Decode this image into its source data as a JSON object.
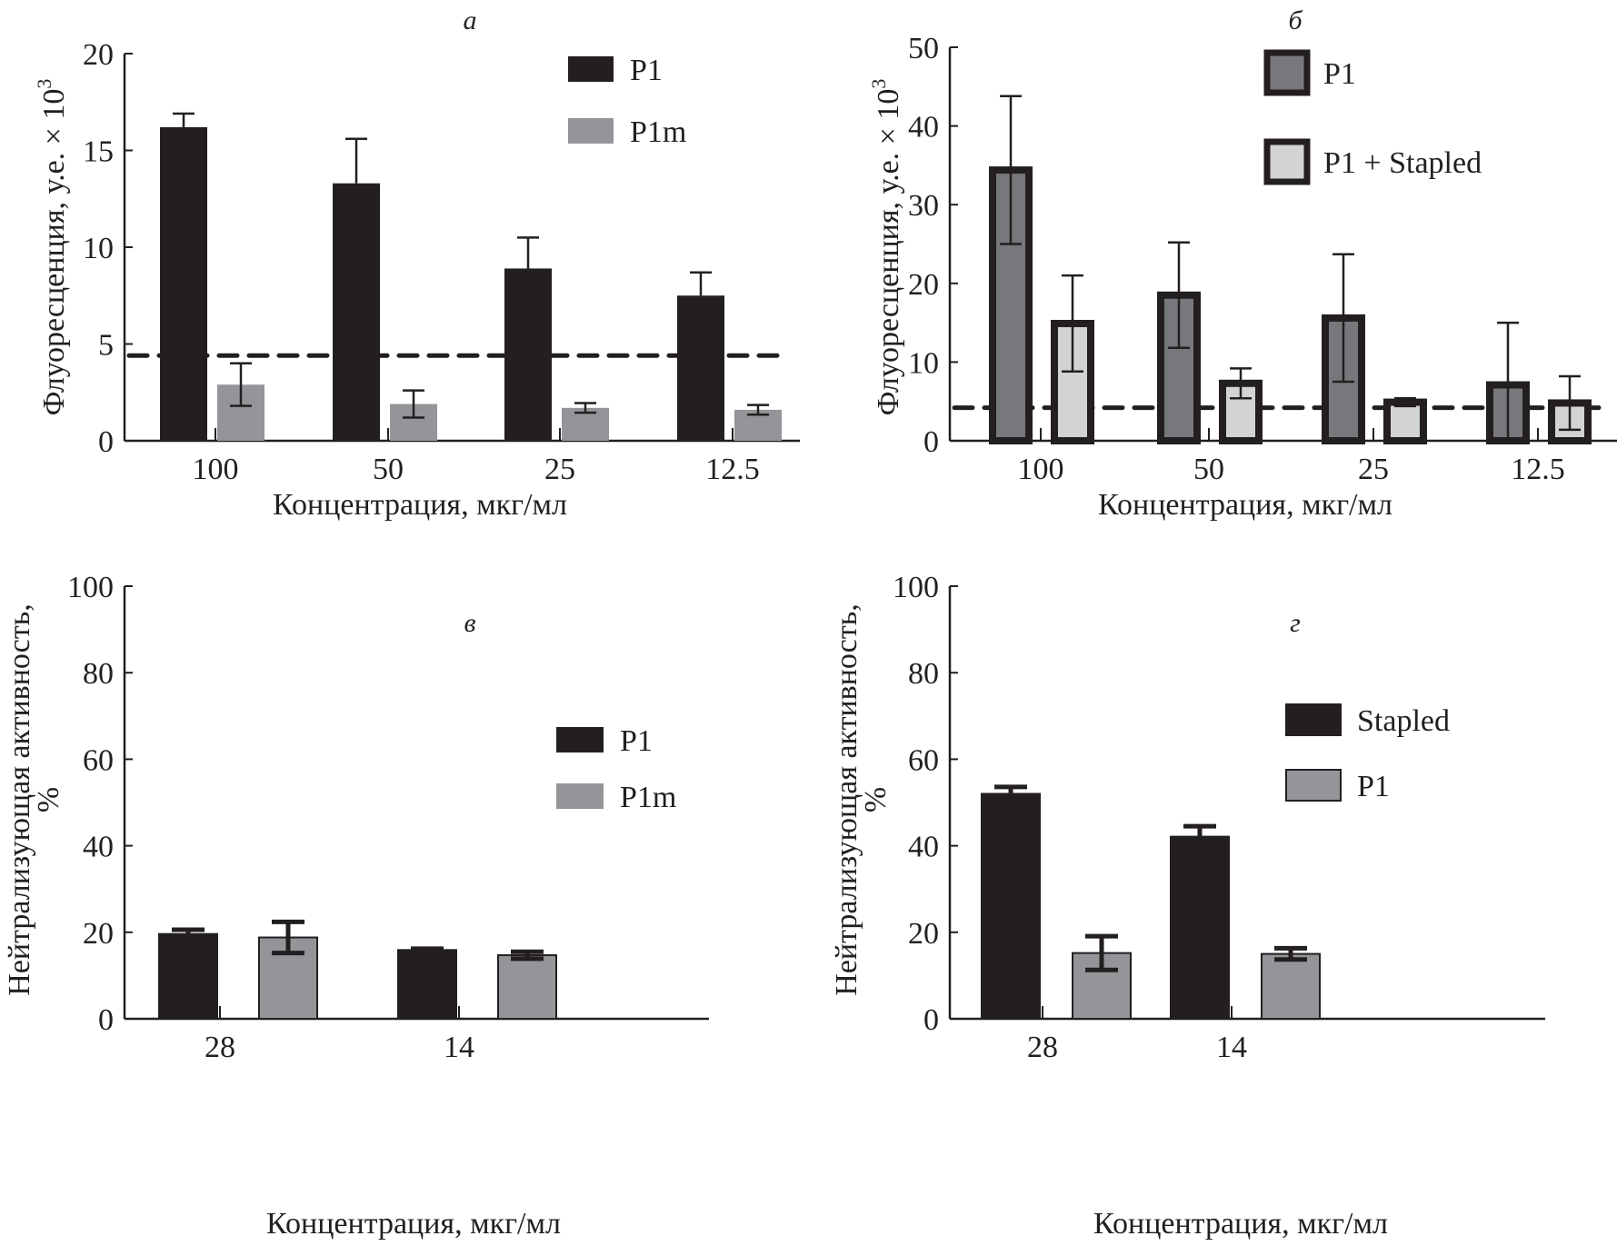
{
  "chart_data": [
    {
      "id": "a",
      "type": "bar",
      "panel_label": "а",
      "title": "",
      "xlabel": "Концентрация, мкг/мл",
      "ylabel": "Флуоресценция, у.е. × 10",
      "ylabel_superscript": "3",
      "ylim": [
        0,
        20
      ],
      "yticks": [
        0,
        5,
        10,
        15,
        20
      ],
      "categories": [
        "100",
        "50",
        "25",
        "12.5"
      ],
      "threshold_line": 4.4,
      "legend_position": "top-right",
      "error_style": "upper",
      "series": [
        {
          "name": "P1",
          "color": "#231f20",
          "values": [
            16.2,
            13.3,
            8.9,
            7.5
          ],
          "errors": [
            0.7,
            2.3,
            1.6,
            1.2
          ]
        },
        {
          "name": "P1m",
          "color": "#939598",
          "values": [
            2.9,
            1.9,
            1.7,
            1.6
          ],
          "errors": [
            1.1,
            0.7,
            0.25,
            0.25
          ]
        }
      ]
    },
    {
      "id": "b",
      "type": "bar",
      "panel_label": "б",
      "title": "",
      "xlabel": "Концентрация, мкг/мл",
      "ylabel": "Флуоресценция, у.е. × 10",
      "ylabel_superscript": "3",
      "ylim": [
        0,
        50
      ],
      "yticks": [
        0,
        10,
        20,
        30,
        40,
        50
      ],
      "categories": [
        "100",
        "50",
        "25",
        "12.5"
      ],
      "threshold_line": 4.2,
      "legend_position": "top-right",
      "error_style": "both",
      "series": [
        {
          "name": "P1",
          "color": "#77787b",
          "edge": "#231f20",
          "values": [
            34.4,
            18.5,
            15.6,
            7.1
          ],
          "errors": [
            9.4,
            6.7,
            8.1,
            7.9
          ]
        },
        {
          "name": "P1 + Stapled",
          "color": "#d1d3d4",
          "edge": "#231f20",
          "values": [
            14.9,
            7.3,
            4.9,
            4.8
          ],
          "errors": [
            6.1,
            1.9,
            0.5,
            3.4
          ]
        }
      ]
    },
    {
      "id": "c",
      "type": "bar",
      "panel_label": "в",
      "title": "",
      "xlabel": "Концентрация, мкг/мл",
      "ylabel": "Нейтрализующая активность,",
      "ylabel_line2": "%",
      "ylim": [
        0,
        100
      ],
      "yticks": [
        0,
        20,
        40,
        60,
        80,
        100
      ],
      "categories": [
        "28",
        "14"
      ],
      "legend_position": "top-right",
      "error_style": "upper-thick",
      "series": [
        {
          "name": "P1",
          "color": "#231f20",
          "values": [
            19.6,
            15.9
          ],
          "errors": [
            1.0,
            0.3
          ]
        },
        {
          "name": "P1m",
          "color": "#939598",
          "values": [
            18.8,
            14.7
          ],
          "errors": [
            3.6,
            0.8
          ]
        }
      ]
    },
    {
      "id": "d",
      "type": "bar",
      "panel_label": "г",
      "title": "",
      "xlabel": "Концентрация, мкг/мл",
      "ylabel": "Нейтрализующая активность,",
      "ylabel_line2": "%",
      "ylim": [
        0,
        100
      ],
      "yticks": [
        0,
        20,
        40,
        60,
        80,
        100
      ],
      "categories": [
        "28",
        "14"
      ],
      "legend_position": "top-right",
      "error_style": "upper-thick",
      "series": [
        {
          "name": "Stapled",
          "color": "#231f20",
          "values": [
            52.0,
            42.1
          ],
          "errors": [
            1.6,
            2.4
          ]
        },
        {
          "name": "P1",
          "color": "#939598",
          "values": [
            15.2,
            15.0
          ],
          "errors": [
            3.9,
            1.3
          ]
        }
      ]
    }
  ]
}
